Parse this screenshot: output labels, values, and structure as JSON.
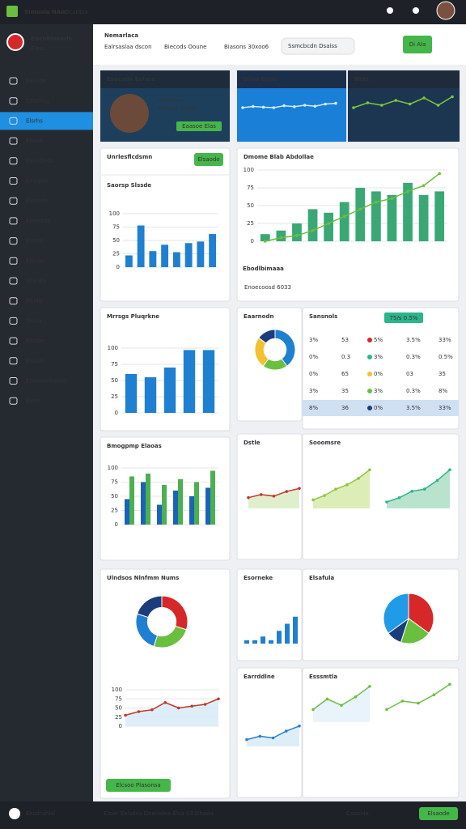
{
  "topbar": {
    "title": "Simoola NAm",
    "menu": "Dcabbia"
  },
  "sidebar": {
    "brand": "Elsrnhsmarls",
    "sub": "Eless",
    "active": 2,
    "items": [
      "Eesode",
      "Ezoprog",
      "Elsrhs",
      "Ebook",
      "Elcordeos",
      "Emopse",
      "Elcoode",
      "Elmeode",
      "Elsvte",
      "Elsede",
      "Nlarula",
      "Bludg",
      "Viooa",
      "Elrode",
      "Elsode",
      "Elsmoonhaabs",
      "Evea"
    ]
  },
  "header": {
    "title": "Nemarlaca",
    "tabs": [
      "Ealrsaslaa dscon",
      "Biecods Ooune",
      "Biasons 30xoo6"
    ],
    "search": "Ssmcbcdn Dsaiss",
    "button": "Di Ala"
  },
  "cards": [
    {
      "title": "Esacoda Ecfare",
      "name": "Saasbms",
      "role": "Ensaso Elooe",
      "button": "Eaasoe Elas"
    },
    {
      "title": "Diwn Enoe"
    },
    {
      "title": "Nlde"
    },
    {
      "title": "Unrlesflcdsmn",
      "button": "Elsaode",
      "subtitle": "Saorsp Slssde"
    },
    {
      "title": "Dmome Blab Abdollae",
      "footer": "Ebodlbimaaa",
      "legend": "Enoecoosd 6033"
    },
    {
      "title": "Mrrsgs Pluqrkne"
    },
    {
      "title": "Bmogpmp Elaoas"
    },
    {
      "title": "Eaarnodn"
    },
    {
      "title": "Sansnols"
    },
    {
      "title": "Dstle"
    },
    {
      "title": "Sooomsre"
    },
    {
      "title": "Ulndsos Nlnfmm Nums",
      "button": "Elcsoo Plasonsa"
    },
    {
      "title": "Esorneke"
    },
    {
      "title": "Elsafula"
    },
    {
      "title": "Earrddlne"
    },
    {
      "title": "Esssmtla"
    }
  ],
  "table": {
    "badge": "75/s 0.5%",
    "rows": [
      [
        "3%",
        "53",
        "5%",
        "3.5%",
        "33%"
      ],
      [
        "0%",
        "0.3",
        "3%",
        "0.3%",
        "0.5%"
      ],
      [
        "0%",
        "65",
        "0%",
        "03",
        "35"
      ],
      [
        "3%",
        "35",
        "3%",
        "0.3%",
        "8%"
      ],
      [
        "8%",
        "36",
        "0%",
        "3.5%",
        "33%"
      ]
    ]
  },
  "footer": {
    "left": "Eesdrahlsl",
    "center": "Elswr Ealsdes Dnelodea Elsa 03 Dhada",
    "right": "Cooslde",
    "button": "Elsaode"
  },
  "widgets": [
    {
      "type": "bar",
      "ylim": [
        0,
        100
      ],
      "yticks": [
        0,
        25,
        50,
        75,
        100
      ],
      "series": [
        {
          "color": "#1f7fd1",
          "values": [
            22,
            78,
            30,
            42,
            28,
            45,
            48,
            62
          ]
        }
      ]
    },
    {
      "type": "bar",
      "ylim": [
        0,
        100
      ],
      "yticks": [
        0,
        25,
        50,
        75,
        100
      ],
      "series": [
        {
          "color": "#1f7fd1",
          "values": [
            60,
            55,
            70,
            97,
            97
          ]
        }
      ]
    },
    {
      "type": "bar",
      "ylim": [
        0,
        100
      ],
      "yticks": [
        0,
        25,
        50,
        75,
        100
      ],
      "series": [
        {
          "color": "#1a63b8",
          "values": [
            45,
            75,
            35,
            60,
            50,
            65
          ]
        },
        {
          "color": "#4caf50",
          "values": [
            85,
            90,
            70,
            80,
            75,
            95
          ]
        }
      ]
    },
    {
      "type": "donut",
      "values": [
        30,
        25,
        25,
        20
      ],
      "colors": [
        "#d62828",
        "#6abf3f",
        "#1f7fd1",
        "#1a3d7c"
      ]
    },
    {
      "type": "line",
      "ylim": [
        0,
        100
      ],
      "yticks": [
        0,
        25,
        50,
        75,
        100
      ],
      "series": [
        {
          "color": "#c0392b",
          "fill": "#d6eaf8",
          "values": [
            30,
            40,
            45,
            65,
            50,
            55,
            60,
            75
          ]
        }
      ]
    },
    {
      "type": "bar",
      "ylim": [
        0,
        100
      ],
      "yticks": [
        0,
        25,
        50,
        75,
        100
      ],
      "series": [
        {
          "color": "#3aa874",
          "values": [
            10,
            15,
            25,
            45,
            40,
            55,
            75,
            70,
            65,
            82,
            65,
            70
          ]
        },
        {
          "type": "line",
          "color": "#6abf3f",
          "values": [
            0,
            5,
            8,
            15,
            25,
            35,
            45,
            55,
            60,
            70,
            78,
            95
          ]
        }
      ]
    },
    {
      "type": "line",
      "ylim": [
        0,
        100
      ],
      "series": [
        {
          "color": "#d4ecff",
          "values": [
            40,
            45,
            42,
            40,
            48,
            44,
            50,
            46,
            55,
            58
          ]
        }
      ]
    },
    {
      "type": "line",
      "ylim": [
        0,
        100
      ],
      "series": [
        {
          "color": "#7cc93f",
          "values": [
            30,
            50,
            40,
            60,
            45,
            70,
            40,
            75
          ]
        }
      ]
    },
    {
      "type": "donut",
      "values": [
        40,
        20,
        25,
        15
      ],
      "colors": [
        "#1f7fd1",
        "#6abf3f",
        "#f2c12e",
        "#1a3d7c"
      ]
    },
    {
      "type": "line",
      "ylim": [
        0,
        100
      ],
      "series": [
        {
          "color": "#c0392b",
          "fill": "#d7ebc0",
          "values": [
            35,
            45,
            40,
            55,
            65
          ]
        }
      ]
    },
    {
      "type": "line",
      "ylim": [
        0,
        100
      ],
      "series": [
        {
          "color": "#8cc63f",
          "fill": "#d3e8a6",
          "values": [
            20,
            30,
            45,
            55,
            70,
            90
          ]
        }
      ]
    },
    {
      "type": "line",
      "ylim": [
        0,
        100
      ],
      "series": [
        {
          "color": "#2bb58a",
          "fill": "#a8dcc0",
          "values": [
            15,
            25,
            40,
            45,
            65,
            90
          ]
        }
      ]
    },
    {
      "type": "bar",
      "ylim": [
        0,
        100
      ],
      "series": [
        {
          "color": "#1f7fd1",
          "values": [
            12,
            12,
            25,
            12,
            45,
            70,
            95
          ]
        }
      ]
    },
    {
      "type": "pie",
      "values": [
        35,
        20,
        10,
        35
      ],
      "colors": [
        "#d62828",
        "#6abf3f",
        "#1a3d7c",
        "#1f9be8"
      ]
    },
    {
      "type": "line",
      "ylim": [
        0,
        100
      ],
      "series": [
        {
          "color": "#2a7fd0",
          "fill": "#d6eaf8",
          "values": [
            20,
            30,
            25,
            45,
            60
          ]
        }
      ]
    },
    {
      "type": "line",
      "ylim": [
        0,
        100
      ],
      "series": [
        {
          "color": "#6abf3f",
          "fill": "#e3f0fa",
          "values": [
            30,
            55,
            40,
            60,
            85
          ]
        }
      ]
    },
    {
      "type": "line",
      "ylim": [
        0,
        100
      ],
      "series": [
        {
          "color": "#6abf3f",
          "values": [
            30,
            50,
            45,
            65,
            90
          ]
        }
      ]
    }
  ]
}
